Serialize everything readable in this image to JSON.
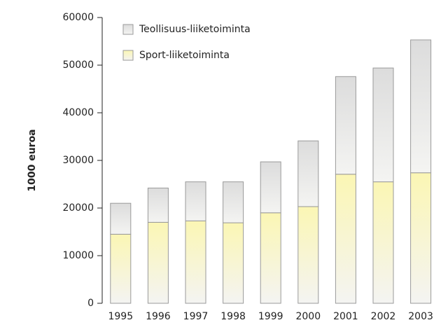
{
  "chart_data": {
    "type": "stacked_bar",
    "y_label": "1000 euroa",
    "categories": [
      "1995",
      "1996",
      "1997",
      "1998",
      "1999",
      "2000",
      "2001",
      "2002",
      "2003"
    ],
    "series": [
      {
        "name": "Sport-liiketoiminta",
        "color": "#fbf6b4",
        "values": [
          14500,
          17000,
          17300,
          16900,
          19000,
          20300,
          27100,
          25500,
          27400
        ]
      },
      {
        "name": "Teollisuus-liiketoiminta",
        "color": "#dcdcdc",
        "values": [
          6500,
          7200,
          8200,
          8600,
          10700,
          13800,
          20500,
          23900,
          27900
        ]
      }
    ],
    "ylim": [
      0,
      60000
    ],
    "yticks": [
      0,
      10000,
      20000,
      30000,
      40000,
      50000,
      60000
    ],
    "legend": "upper left"
  }
}
